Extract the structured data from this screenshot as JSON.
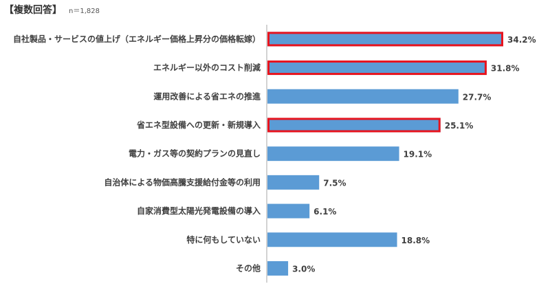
{
  "header": {
    "answer_type": "【複数回答】",
    "sample_size": "n＝1,828"
  },
  "colors": {
    "bar": "#5b9bd5",
    "highlight_border": "#e8141e",
    "axis": "#a6a6a6"
  },
  "chart_data": {
    "type": "bar",
    "orientation": "horizontal",
    "categories": [
      "自社製品・サービスの値上げ（エネルギー価格上昇分の価格転嫁）",
      "エネルギー以外のコスト削減",
      "運用改善による省エネの推進",
      "省エネ型設備への更新・新規導入",
      "電力・ガス等の契約プランの見直し",
      "自治体による物価高騰支援給付金等の利用",
      "自家消費型太陽光発電設備の導入",
      "特に何もしていない",
      "その他"
    ],
    "values": [
      34.2,
      31.8,
      27.7,
      25.1,
      19.1,
      7.5,
      6.1,
      18.8,
      3.0
    ],
    "value_labels": [
      "34.2%",
      "31.8%",
      "27.7%",
      "25.1%",
      "19.1%",
      "7.5%",
      "6.1%",
      "18.8%",
      "3.0%"
    ],
    "highlighted": [
      true,
      true,
      false,
      true,
      false,
      false,
      false,
      false,
      false
    ],
    "xlim": [
      0,
      34.2
    ],
    "grid": false,
    "title": "",
    "xlabel": "",
    "ylabel": ""
  }
}
